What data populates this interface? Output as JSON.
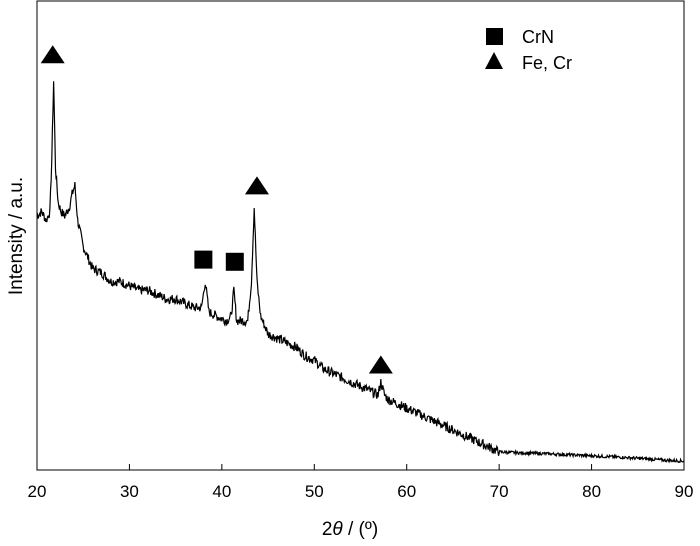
{
  "chart_data": {
    "type": "line",
    "title": "",
    "xlabel_prefix": "2",
    "xlabel_theta": "θ",
    "xlabel_suffix": " / (º)",
    "ylabel": "Intensity / a.u.",
    "xlim": [
      20,
      90
    ],
    "ylim": [
      0,
      100
    ],
    "x_ticks": [
      "20",
      "30",
      "40",
      "50",
      "60",
      "70",
      "80",
      "90"
    ],
    "y_ticks_shown": false,
    "grid": false,
    "legend_position": "top-right",
    "legend": [
      {
        "marker": "square",
        "label": "CrN"
      },
      {
        "marker": "triangle",
        "label": "Fe, Cr"
      }
    ],
    "series": [
      {
        "points": [
          [
            20.0,
            57
          ],
          [
            20.5,
            58
          ],
          [
            21.0,
            56
          ],
          [
            21.4,
            58
          ],
          [
            21.6,
            70
          ],
          [
            21.8,
            88
          ],
          [
            22.0,
            68
          ],
          [
            22.3,
            60
          ],
          [
            22.6,
            58
          ],
          [
            23.0,
            57
          ],
          [
            23.5,
            59
          ],
          [
            23.8,
            62
          ],
          [
            24.1,
            64
          ],
          [
            24.4,
            56
          ],
          [
            25,
            50
          ],
          [
            26,
            45
          ],
          [
            27,
            44
          ],
          [
            28,
            42
          ],
          [
            29,
            42
          ],
          [
            30,
            41
          ],
          [
            31,
            40
          ],
          [
            32,
            40
          ],
          [
            33,
            39
          ],
          [
            34,
            38
          ],
          [
            35,
            38
          ],
          [
            36,
            37
          ],
          [
            37,
            36
          ],
          [
            37.8,
            36
          ],
          [
            38.2,
            42
          ],
          [
            38.6,
            35
          ],
          [
            39.5,
            34
          ],
          [
            40.5,
            33
          ],
          [
            41.0,
            34
          ],
          [
            41.3,
            40
          ],
          [
            41.6,
            33
          ],
          [
            42.3,
            33
          ],
          [
            42.8,
            33
          ],
          [
            43.2,
            42
          ],
          [
            43.5,
            59
          ],
          [
            43.8,
            42
          ],
          [
            44.2,
            34
          ],
          [
            45,
            30
          ],
          [
            46,
            29
          ],
          [
            47,
            28
          ],
          [
            48,
            27
          ],
          [
            49,
            25
          ],
          [
            50,
            24
          ],
          [
            51,
            22
          ],
          [
            52,
            21
          ],
          [
            53,
            20
          ],
          [
            54,
            19
          ],
          [
            55,
            18
          ],
          [
            56,
            17
          ],
          [
            56.9,
            16
          ],
          [
            57.2,
            19
          ],
          [
            57.6,
            16
          ],
          [
            58,
            15
          ],
          [
            59,
            14
          ],
          [
            60,
            13
          ],
          [
            61,
            12
          ],
          [
            62,
            11
          ],
          [
            63,
            10
          ],
          [
            64,
            9
          ],
          [
            65,
            8
          ],
          [
            66,
            7
          ],
          [
            67,
            6
          ],
          [
            68,
            5
          ],
          [
            69,
            4
          ],
          [
            70,
            3
          ],
          [
            72,
            2.8
          ],
          [
            75,
            2.6
          ],
          [
            78,
            2.3
          ],
          [
            80,
            2.1
          ],
          [
            83,
            1.8
          ],
          [
            86,
            1.4
          ],
          [
            88,
            1.1
          ],
          [
            90,
            0.9
          ]
        ]
      }
    ],
    "markers": [
      {
        "shape": "triangle",
        "x": 21.7,
        "y": 94
      },
      {
        "shape": "triangle",
        "x": 43.8,
        "y": 64
      },
      {
        "shape": "triangle",
        "x": 57.2,
        "y": 23
      },
      {
        "shape": "square",
        "x": 38.0,
        "y": 47
      },
      {
        "shape": "square",
        "x": 41.4,
        "y": 46.5
      }
    ],
    "colors": {
      "line": "#000000",
      "markers": "#000000",
      "background": "#ffffff"
    }
  }
}
